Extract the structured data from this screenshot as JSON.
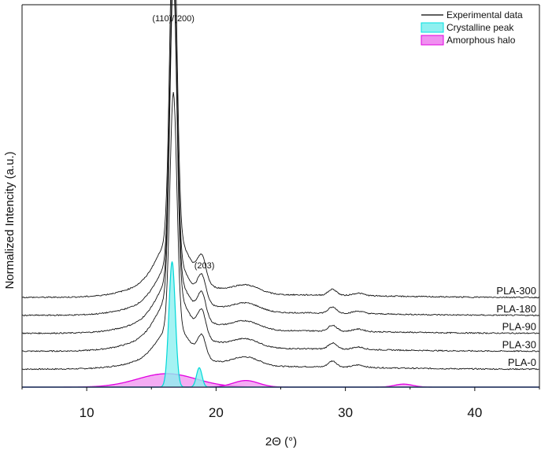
{
  "chart_data": {
    "type": "line",
    "xlabel": "2Θ (°)",
    "ylabel": "Normalized Intencity (a.u.)",
    "xlim": [
      5,
      45
    ],
    "x_ticks": [
      10,
      20,
      30,
      40
    ],
    "x_tick_labels": [
      "10",
      "20",
      "30",
      "40"
    ],
    "y_ticks_shown": false,
    "grid": false,
    "legend": {
      "position": "top-right",
      "entries": [
        {
          "label": "Experimental data",
          "style": "line",
          "color": "#000000"
        },
        {
          "label": "Crystalline peak",
          "style": "fill",
          "color": "#00e0e0"
        },
        {
          "label": "Amorphous halo",
          "style": "fill",
          "color": "#e000e0"
        }
      ]
    },
    "annotations": [
      {
        "text": "(110)/(200)",
        "x": 16.7
      },
      {
        "text": "(203)",
        "x": 19.1
      }
    ],
    "series": [
      {
        "name": "PLA-0",
        "offset": 0.06,
        "peak_main": 0.78,
        "peak_203": 0.07,
        "halo": 0.035
      },
      {
        "name": "PLA-30",
        "offset": 0.12,
        "peak_main": 1.05,
        "peak_203": 0.08,
        "halo": 0.035
      },
      {
        "name": "PLA-90",
        "offset": 0.18,
        "peak_main": 1.02,
        "peak_203": 0.08,
        "halo": 0.035
      },
      {
        "name": "PLA-180",
        "offset": 0.24,
        "peak_main": 1.0,
        "peak_203": 0.08,
        "halo": 0.035
      },
      {
        "name": "PLA-300",
        "offset": 0.3,
        "peak_main": 1.12,
        "peak_203": 0.08,
        "halo": 0.035
      }
    ],
    "fitted_components": {
      "crystalline_peaks": [
        {
          "center": 16.6,
          "height": 0.42,
          "width": 0.35
        },
        {
          "center": 18.7,
          "height": 0.065,
          "width": 0.3
        }
      ],
      "amorphous_halos": [
        {
          "center": 16.2,
          "height": 0.045,
          "width": 3.2
        },
        {
          "center": 22.3,
          "height": 0.022,
          "width": 1.4
        },
        {
          "center": 34.5,
          "height": 0.01,
          "width": 1.0
        }
      ]
    },
    "colors": {
      "crystalline_fill": "#8ff0f0",
      "crystalline_line": "#00d8d8",
      "amorphous_fill": "#f090f0",
      "amorphous_line": "#e000e0"
    }
  }
}
